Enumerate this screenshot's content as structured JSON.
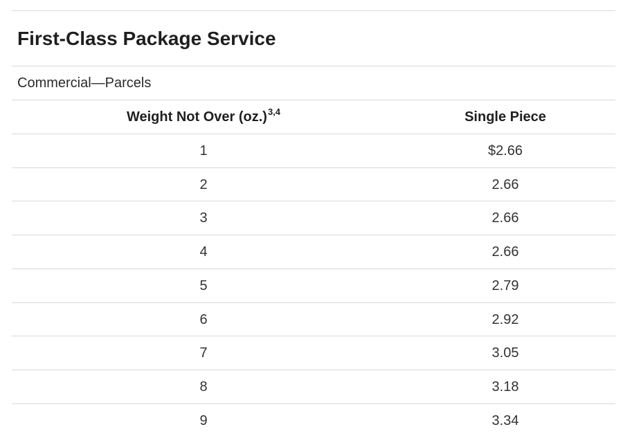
{
  "section": {
    "title": "First-Class Package Service",
    "subtitle": "Commercial—Parcels"
  },
  "table": {
    "headers": {
      "weight": "Weight Not Over (oz.)",
      "weight_footnotes": "3,4",
      "price": "Single Piece"
    },
    "rows": [
      {
        "weight": "1",
        "price": "$2.66"
      },
      {
        "weight": "2",
        "price": "2.66"
      },
      {
        "weight": "3",
        "price": "2.66"
      },
      {
        "weight": "4",
        "price": "2.66"
      },
      {
        "weight": "5",
        "price": "2.79"
      },
      {
        "weight": "6",
        "price": "2.92"
      },
      {
        "weight": "7",
        "price": "3.05"
      },
      {
        "weight": "8",
        "price": "3.18"
      },
      {
        "weight": "9",
        "price": "3.34"
      }
    ]
  }
}
